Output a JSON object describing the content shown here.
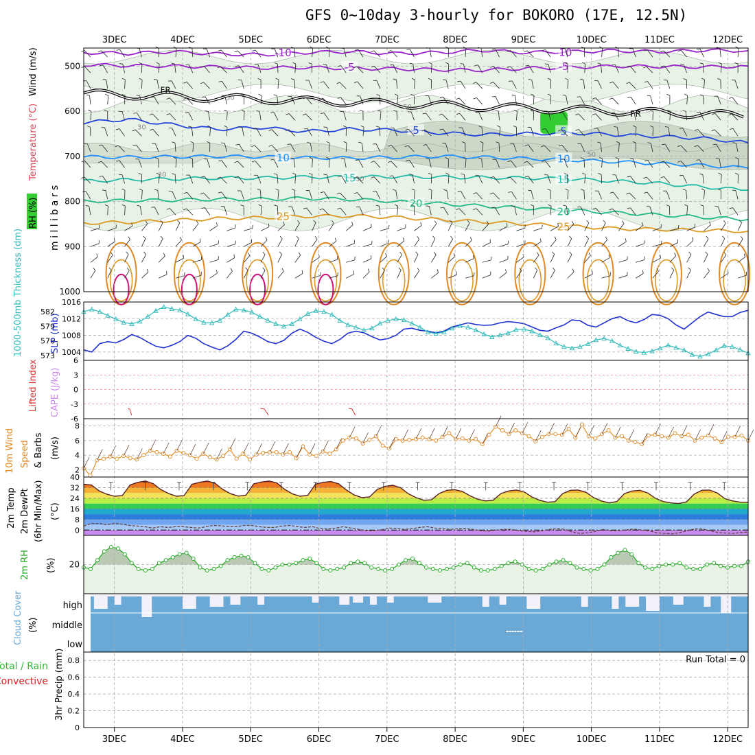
{
  "title": "GFS 0~10day 3-hourly for BOKORO (17E, 12.5N)",
  "colors": {
    "border": "#000000",
    "grid": "#aaaaaa",
    "rh_fill": "#e9f2e6",
    "rh_fill2": "#c9d6c4",
    "rh_green": "#33cc33",
    "slp": "#1f2fd0",
    "thickness": "#33bbbb",
    "lifted": "#dd3333",
    "cape": "#cc88ee",
    "wind10": "#e08822",
    "rh2m_line": "#22aa22",
    "rh2m_fill": "#e8f3e6",
    "cloud": "#6aa9d6",
    "cloud_bg": "#f2f0f8",
    "precip_total": "#33bb33",
    "precip_conv": "#dd2222"
  },
  "chart_data": {
    "type": "meteogram",
    "x_dates": [
      "3DEC",
      "4DEC",
      "5DEC",
      "6DEC",
      "7DEC",
      "8DEC",
      "9DEC",
      "10DEC",
      "11DEC",
      "12DEC"
    ],
    "upper_panel": {
      "ylabel_parts": [
        "RH (%)",
        "Temperature (°C)",
        "Wind (m/s)"
      ],
      "ylabel_mb": "m i l l i b a r s",
      "pressure_ticks": [
        "500",
        "600",
        "700",
        "800",
        "900",
        "1000"
      ],
      "pressure_range": [
        460,
        1000
      ],
      "temp_contours": [
        {
          "label": "-10",
          "color": "#9922cc",
          "levels_mb": [
            470,
            472,
            468,
            473,
            475,
            470,
            468,
            472,
            470,
            465,
            470,
            468,
            466,
            468,
            465,
            466
          ]
        },
        {
          "label": "-5",
          "color": "#9922cc",
          "levels_mb": [
            497,
            499,
            500,
            502,
            504,
            503,
            505,
            506,
            508,
            509,
            505,
            503,
            500,
            501,
            502,
            500
          ]
        },
        {
          "label": "5",
          "color": "#2244dd",
          "levels_mb": [
            625,
            618,
            630,
            640,
            636,
            645,
            640,
            642,
            648,
            652,
            650,
            648,
            652,
            656,
            660,
            670
          ]
        },
        {
          "label": "10",
          "color": "#1e90ff",
          "levels_mb": [
            701,
            702,
            701,
            700,
            701,
            703,
            704,
            702,
            700,
            702,
            705,
            708,
            712,
            716,
            720,
            726
          ]
        },
        {
          "label": "15",
          "color": "#22bbaa",
          "levels_mb": [
            755,
            752,
            750,
            748,
            748,
            746,
            746,
            745,
            746,
            747,
            748,
            750,
            755,
            760,
            768,
            775
          ]
        },
        {
          "label": "20",
          "color": "#22bb88",
          "levels_mb": [
            800,
            798,
            797,
            795,
            795,
            793,
            795,
            800,
            805,
            810,
            815,
            820,
            825,
            830,
            835,
            840
          ]
        },
        {
          "label": "25",
          "color": "#dd9922",
          "levels_mb": [
            848,
            846,
            842,
            838,
            836,
            833,
            832,
            835,
            840,
            845,
            850,
            855,
            860,
            862,
            864,
            866
          ]
        }
      ],
      "freezing_label": "FR",
      "rh_labels": [
        "30",
        "50",
        "30",
        "50",
        "30",
        "50"
      ]
    },
    "slp_panel": {
      "left_label": "1000-500mb Thickness (dm)",
      "right_label": "SLP (mb)",
      "thickness_ticks": [
        "582",
        "579",
        "576",
        "573"
      ],
      "slp_ticks": [
        "1016",
        "1012",
        "1008",
        "1004"
      ],
      "slp_range": [
        1002,
        1016
      ],
      "thickness_range": [
        572,
        584
      ],
      "slp_values": [
        1004.5,
        1004,
        1006,
        1006.5,
        1006.2,
        1007,
        1008.2,
        1007.5,
        1006.4,
        1005.4,
        1005,
        1005.6,
        1006.5,
        1008,
        1007.3,
        1006,
        1005.2,
        1004.5,
        1005.5,
        1007,
        1009,
        1008.5,
        1007.6,
        1006.5,
        1006,
        1006.8,
        1008.5,
        1009.5,
        1008.7,
        1007.5,
        1006.6,
        1006,
        1007,
        1008.5,
        1009,
        1008.6,
        1007.7,
        1006.9,
        1007.2,
        1008,
        1009.5,
        1009.7,
        1009.2,
        1009,
        1008.6,
        1009,
        1010,
        1010.5,
        1011,
        1010.6,
        1010.4,
        1010.5,
        1011,
        1011.3,
        1011.1,
        1010.8,
        1010,
        1009.2,
        1009,
        1009.8,
        1010.5,
        1011.7,
        1011.5,
        1010.4,
        1010,
        1011,
        1012,
        1012.5,
        1011.5,
        1011,
        1011.8,
        1013,
        1012.8,
        1012,
        1010.5,
        1009.5,
        1011,
        1012.5,
        1013.6,
        1013,
        1012.5,
        1012.5,
        1013.5,
        1014
      ],
      "thickness_values": [
        582,
        582.5,
        582,
        581.2,
        580.5,
        579.8,
        579.5,
        580,
        581,
        582.2,
        583,
        582.6,
        582.3,
        581.5,
        580.5,
        579.8,
        579.7,
        580.2,
        581.4,
        582.5,
        582.3,
        581.9,
        581,
        580.2,
        579.5,
        579,
        579.5,
        580.5,
        581.6,
        582.2,
        582,
        581.4,
        580.2,
        579.3,
        578.8,
        578.2,
        578.6,
        579.6,
        580.2,
        580.5,
        580.3,
        579.6,
        578.8,
        577.8,
        577.5,
        577.8,
        578.6,
        579.1,
        578.8,
        578.2,
        577.4,
        576.8,
        577.2,
        577.6,
        578.3,
        578.4,
        578,
        577.2,
        576.6,
        575.5,
        574.8,
        574.5,
        574.8,
        575.4,
        576.2,
        576.5,
        576,
        575.1,
        574.4,
        573.8,
        573.6,
        573.9,
        574.5,
        575.1,
        574.6,
        574.1,
        573.2,
        572.8,
        573.3,
        574.1,
        575,
        574.8,
        574.2,
        573.5
      ]
    },
    "li_panel": {
      "left_label": "Lifted Index",
      "right_label": "CAPE (J/kg)",
      "ticks": [
        "6",
        "3",
        "0",
        "-3",
        "-6"
      ],
      "range": [
        -6,
        6
      ],
      "li_segments": [
        [
          6,
          6.5
        ],
        [
          24,
          25.1
        ],
        [
          36,
          36.9
        ]
      ]
    },
    "wind10_panel": {
      "label": "10m Wind Speed & Barbs",
      "unit": "(m/s)",
      "ticks": [
        "8",
        "6",
        "4",
        "2"
      ],
      "range": [
        1,
        9
      ],
      "values": [
        2.2,
        1.2,
        3.3,
        3.5,
        3.8,
        3.5,
        3.9,
        3.6,
        3.4,
        4.0,
        4.6,
        4.4,
        4.2,
        3.8,
        4.6,
        4.3,
        4.0,
        3.5,
        4.2,
        3.7,
        3.4,
        3.9,
        4.8,
        3.5,
        4.2,
        3.4,
        4.1,
        4.3,
        4.4,
        4.4,
        4.1,
        4.4,
        3.6,
        5.2,
        4.1,
        3.9,
        4.5,
        4.2,
        4.8,
        6.0,
        6.4,
        6.3,
        5.6,
        6.1,
        6.6,
        5.3,
        4.9,
        6.2,
        6.0,
        6.1,
        6.2,
        6.4,
        6.2,
        6.0,
        6.5,
        7.0,
        6.2,
        6.3,
        6.0,
        6.2,
        5.5,
        6.8,
        7.9,
        7.4,
        6.9,
        7.4,
        7.0,
        6.6,
        5.9,
        6.5,
        6.9,
        6.9,
        6.8,
        7.6,
        6.4,
        8.2,
        6.6,
        6.3,
        6.9,
        7.4,
        6.4,
        6.6,
        6.0,
        5.8,
        5.5,
        6.7,
        6.8,
        6.6,
        6.4,
        7.0,
        6.6,
        6.8,
        6.0,
        6.4,
        6.7,
        6.3,
        5.8,
        6.5,
        6.5,
        6.7,
        6.0
      ]
    },
    "temp2m_panel": {
      "label": "2m Temp 2m DewPt (6hr Min/Max)",
      "unit": "(°C)",
      "ticks": [
        "40",
        "32",
        "24",
        "16",
        "8",
        "0"
      ],
      "range": [
        -4,
        40
      ],
      "temp_values": [
        34.5,
        34,
        29.5,
        27,
        25.5,
        26,
        34,
        36,
        37,
        35,
        30.5,
        27.5,
        25.5,
        26,
        34.5,
        36,
        37,
        35.3,
        30.7,
        27.4,
        25.6,
        26.3,
        34.8,
        36.2,
        37,
        35.5,
        30.8,
        27.3,
        25.5,
        26.2,
        34.6,
        36,
        36.6,
        34.9,
        30.2,
        26.5,
        24.5,
        25,
        30.7,
        33,
        33.8,
        32,
        27.4,
        24.5,
        22.5,
        22.8,
        27.5,
        30,
        30.5,
        29.2,
        25.8,
        23.3,
        22,
        22.5,
        27.5,
        29.5,
        30.2,
        28.8,
        25,
        22.5,
        21,
        21.4,
        27.5,
        30,
        30.2,
        28.5,
        24.5,
        22,
        20.5,
        21.5,
        27.5,
        29.5,
        30,
        28,
        24,
        21.5,
        20.5,
        20,
        21.2,
        27,
        30,
        30.2,
        28,
        23.7,
        22,
        21,
        21
      ],
      "dewpt_values": [
        3,
        5,
        5,
        4,
        5,
        4.5,
        3.5,
        3,
        2.5,
        1.5,
        2.5,
        2,
        2.5,
        2.5,
        2,
        1.5,
        2.5,
        3.5,
        3.2,
        2.5,
        2.5,
        3.5,
        3.5,
        2.5,
        2,
        2,
        3,
        3.5,
        2.5,
        2,
        2.5,
        1,
        0.8,
        1.5,
        2.5,
        1.5,
        0.5,
        -0.5,
        -0.5,
        0.2,
        1.5,
        1.2,
        0.5,
        1,
        2,
        2.5,
        1.5,
        1,
        0.5,
        1,
        1,
        0.5,
        -0.5,
        -0.8,
        0,
        0.5,
        0.5,
        -0.5,
        -1,
        -1.3,
        -0.5,
        0.5,
        1,
        0.5,
        -1.5,
        -2.5,
        -2,
        -1,
        0.5,
        -0.5,
        -0.5,
        0,
        0.8,
        0,
        -0.5,
        -2,
        -2.5,
        -2.8,
        -2,
        -0.5,
        0.8,
        0.8,
        -0.5,
        -1.8,
        -2.2,
        -2.5,
        -1.8,
        -1.5
      ]
    },
    "rh2m_panel": {
      "label": "2m RH",
      "unit": "(%)",
      "ticks": [
        "20"
      ],
      "range": [
        0,
        40
      ],
      "values": [
        18,
        17,
        23,
        29,
        32,
        31,
        27,
        21,
        17,
        16,
        17,
        21,
        23,
        25,
        27,
        28,
        24,
        18,
        16,
        17,
        19,
        23,
        25,
        26,
        25,
        21,
        17,
        16,
        18,
        20,
        20,
        21,
        23,
        24,
        21,
        17,
        16,
        17,
        18,
        21,
        22,
        21,
        18,
        17,
        16,
        17,
        20,
        23,
        24,
        21,
        18,
        17,
        16,
        17,
        18,
        20,
        21,
        18,
        16,
        16,
        17,
        19,
        21,
        22,
        20,
        17,
        16,
        17,
        20,
        22,
        23,
        21,
        18,
        17,
        16,
        17,
        20,
        25,
        28,
        30,
        27,
        21,
        18,
        17,
        19,
        20,
        20,
        21,
        18,
        17,
        17,
        20,
        21,
        19,
        18,
        19,
        19,
        22
      ]
    },
    "cloud_panel": {
      "label": "Cloud Cover",
      "unit": "(%)",
      "levels": [
        "high",
        "middle",
        "low"
      ],
      "high_gaps": [
        [
          2.7,
          2.9,
          0.3
        ],
        [
          3.0,
          3.1,
          0.2
        ],
        [
          3.4,
          3.55,
          0.5
        ],
        [
          4.0,
          4.2,
          0.3
        ],
        [
          4.4,
          4.6,
          0.25
        ],
        [
          4.7,
          4.85,
          0.2
        ],
        [
          5.1,
          5.2,
          0.2
        ],
        [
          5.9,
          6.0,
          0.15
        ],
        [
          6.3,
          6.45,
          0.2
        ],
        [
          6.5,
          6.65,
          0.15
        ],
        [
          6.75,
          6.85,
          0.2
        ],
        [
          7.0,
          7.1,
          0.15
        ],
        [
          7.6,
          7.8,
          0.15
        ],
        [
          8.4,
          8.5,
          0.25
        ],
        [
          8.65,
          8.75,
          0.2
        ],
        [
          9.05,
          9.25,
          0.3
        ],
        [
          9.85,
          9.95,
          0.25
        ],
        [
          10.3,
          10.4,
          0.3
        ],
        [
          10.5,
          10.7,
          0.25
        ],
        [
          10.8,
          11.0,
          0.35
        ],
        [
          11.2,
          11.35,
          0.2
        ],
        [
          11.65,
          11.75,
          0.25
        ],
        [
          11.9,
          12.05,
          0.4
        ]
      ]
    },
    "precip_panel": {
      "label_total": "Total / Rain",
      "label_conv": "Convective",
      "label_precip": "3hr Precip (mm)",
      "ticks": [
        "0.8",
        "0.6",
        "0.4",
        "0.2",
        "0"
      ],
      "range": [
        0,
        0.9
      ],
      "run_total": "Run Total = 0",
      "values": []
    }
  }
}
